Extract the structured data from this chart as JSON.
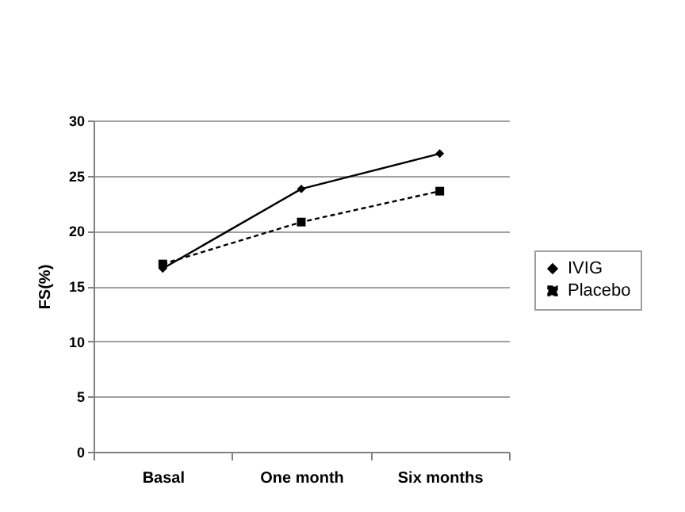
{
  "chart_data": {
    "type": "line",
    "ylabel": "FS(%)",
    "categories": [
      "Basal",
      "One month",
      "Six months"
    ],
    "series": [
      {
        "name": "IVIG",
        "color": "#000000",
        "values": [
          16.6,
          23.8,
          27.0
        ],
        "marker": "diamond",
        "line_style": "solid"
      },
      {
        "name": "Placebo",
        "color": "#000000",
        "values": [
          17.0,
          20.8,
          23.6
        ],
        "marker": "square",
        "line_style": "dashed"
      }
    ],
    "ylim": [
      0,
      30
    ],
    "yticks": [
      0,
      5,
      10,
      15,
      20,
      25,
      30
    ],
    "grid": "y",
    "legend": "right"
  }
}
